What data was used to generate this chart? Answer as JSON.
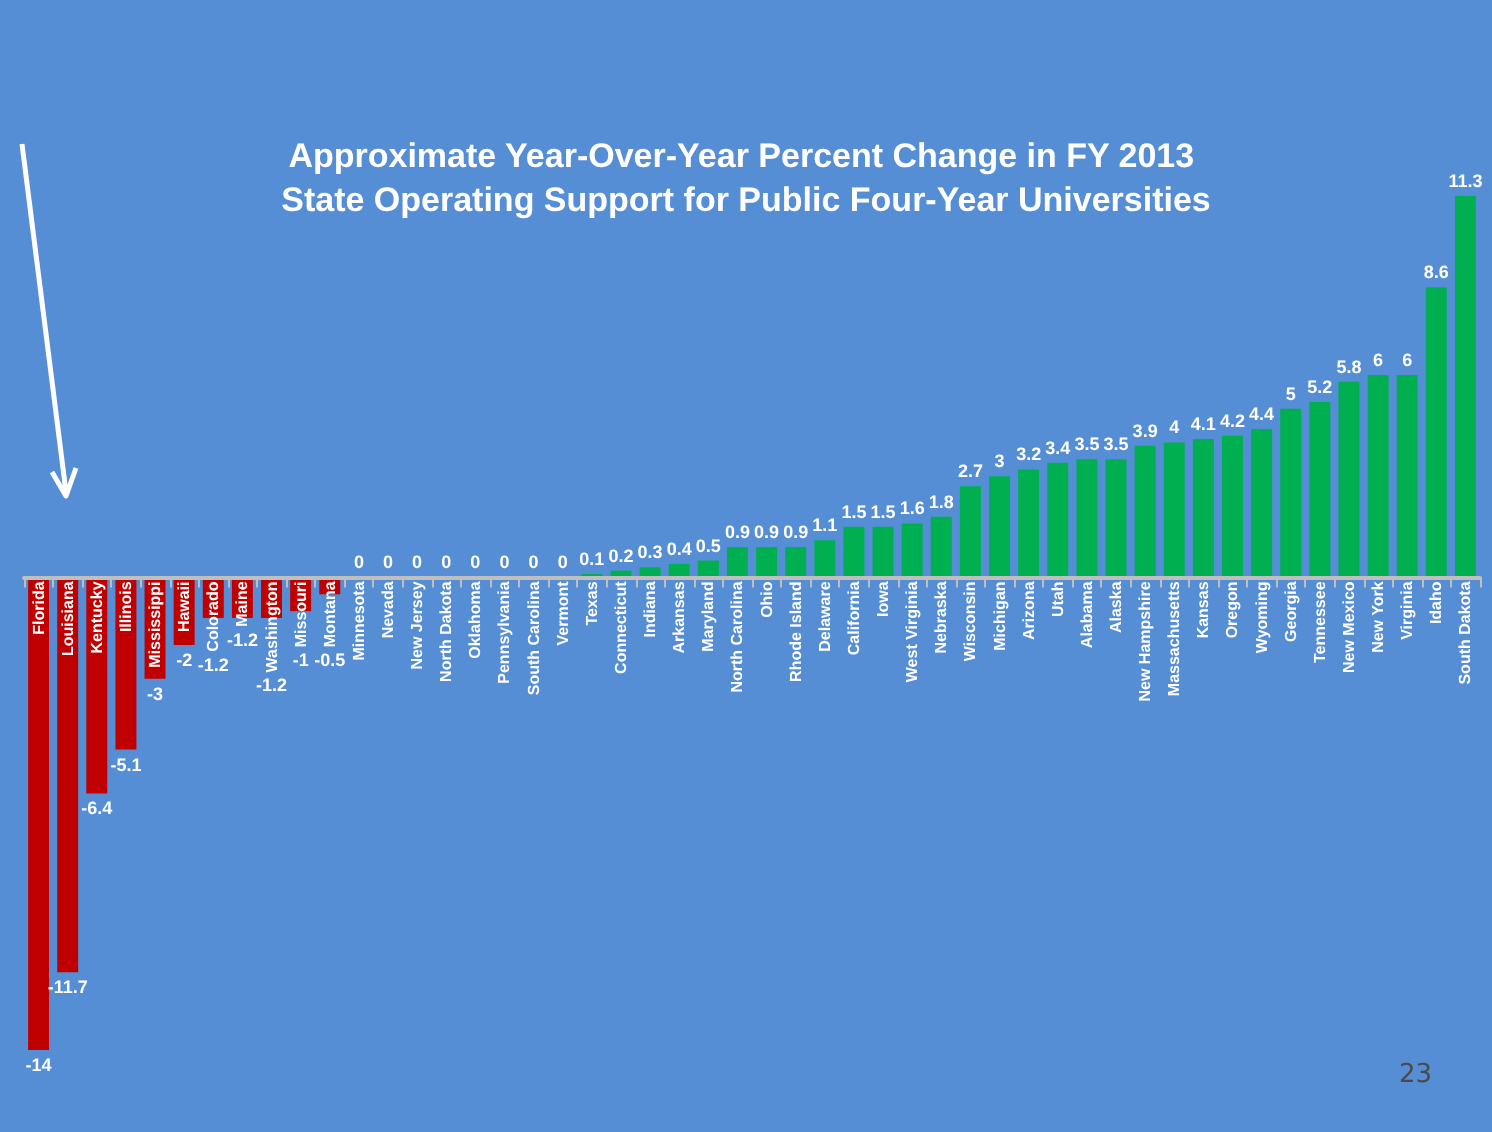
{
  "chart_data": {
    "type": "bar",
    "title": "Approximate Year-Over-Year Percent Change in FY 2013 State Operating Support for Public Four-Year Universities",
    "categories": [
      "Florida",
      "Louisiana",
      "Kentucky",
      "Illinois",
      "Mississippi",
      "Hawaii",
      "Colorado",
      "Maine",
      "Washington",
      "Missouri",
      "Montana",
      "Minnesota",
      "Nevada",
      "New Jersey",
      "North Dakota",
      "Oklahoma",
      "Pennsylvania",
      "South Carolina",
      "Vermont",
      "Texas",
      "Connecticut",
      "Indiana",
      "Arkansas",
      "Maryland",
      "North Carolina",
      "Ohio",
      "Rhode Island",
      "Delaware",
      "California",
      "Iowa",
      "West Virginia",
      "Nebraska",
      "Wisconsin",
      "Michigan",
      "Arizona",
      "Utah",
      "Alabama",
      "Alaska",
      "New Hampshire",
      "Massachusetts",
      "Kansas",
      "Oregon",
      "Wyoming",
      "Georgia",
      "Tennessee",
      "New Mexico",
      "New York",
      "Virginia",
      "Idaho",
      "South Dakota"
    ],
    "values": [
      -14,
      -11.7,
      -6.4,
      -5.1,
      -3,
      -2,
      -1.2,
      -1.2,
      -1.2,
      -1,
      -0.5,
      0,
      0,
      0,
      0,
      0,
      0,
      0,
      0,
      0.1,
      0.2,
      0.3,
      0.4,
      0.5,
      0.9,
      0.9,
      0.9,
      1.1,
      1.5,
      1.5,
      1.6,
      1.8,
      2.7,
      3,
      3.2,
      3.4,
      3.5,
      3.5,
      3.9,
      4,
      4.1,
      4.2,
      4.4,
      5,
      5.2,
      5.8,
      6,
      6,
      8.6,
      11.3
    ],
    "colors": [
      "#c00000",
      "#c00000",
      "#c00000",
      "#c00000",
      "#c00000",
      "#c00000",
      "#c00000",
      "#c00000",
      "#c00000",
      "#c00000",
      "#c00000",
      "#00b050",
      "#00b050",
      "#00b050",
      "#00b050",
      "#00b050",
      "#00b050",
      "#00b050",
      "#00b050",
      "#00b050",
      "#00b050",
      "#00b050",
      "#00b050",
      "#00b050",
      "#00b050",
      "#00b050",
      "#00b050",
      "#00b050",
      "#00b050",
      "#00b050",
      "#00b050",
      "#00b050",
      "#00b050",
      "#00b050",
      "#00b050",
      "#00b050",
      "#00b050",
      "#00b050",
      "#00b050",
      "#00b050",
      "#00b050",
      "#00b050",
      "#00b050",
      "#00b050",
      "#00b050",
      "#00b050",
      "#00b050",
      "#00b050",
      "#00b050",
      "#00b050"
    ],
    "data_labels": true,
    "annotations": [
      "23"
    ]
  }
}
